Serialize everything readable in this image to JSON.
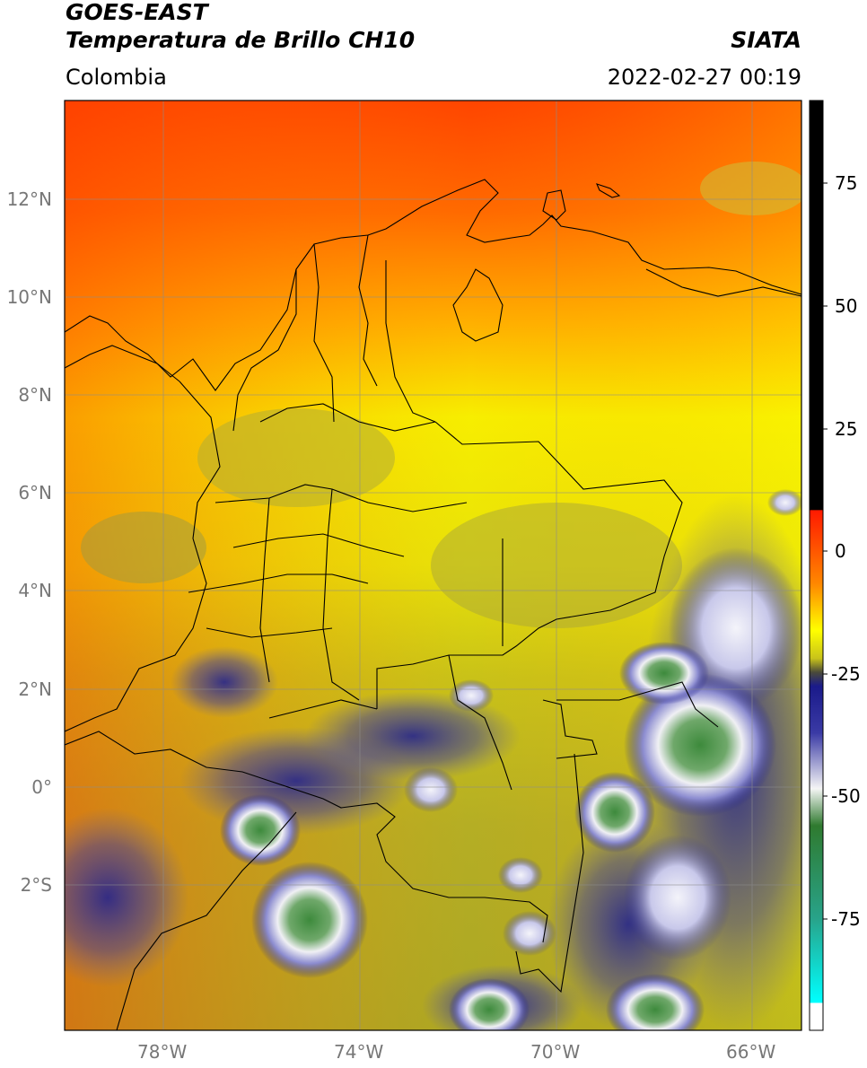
{
  "header": {
    "satellite": "GOES-EAST",
    "product": "Temperatura de Brillo CH10",
    "region": "Colombia",
    "brand": "SIATA",
    "timestamp": "2022-02-27 00:19"
  },
  "axes": {
    "lat_ticks": [
      "12°N",
      "10°N",
      "8°N",
      "6°N",
      "4°N",
      "2°N",
      "0°",
      "2°S"
    ],
    "lon_ticks": [
      "78°W",
      "74°W",
      "70°W",
      "66°W"
    ]
  },
  "colorbar": {
    "ticks": [
      "75",
      "50",
      "25",
      "0",
      "-25",
      "-50",
      "-75"
    ]
  },
  "colors": {
    "warm": "#ff3c00",
    "mid": "#f5f000",
    "olive": "#b9b22a",
    "cold_blue": "#1c1c8c",
    "cold_white": "#f2f2f5",
    "coldest_green": "#3f8f3f",
    "saturated_cyan": "#00d7d7"
  }
}
